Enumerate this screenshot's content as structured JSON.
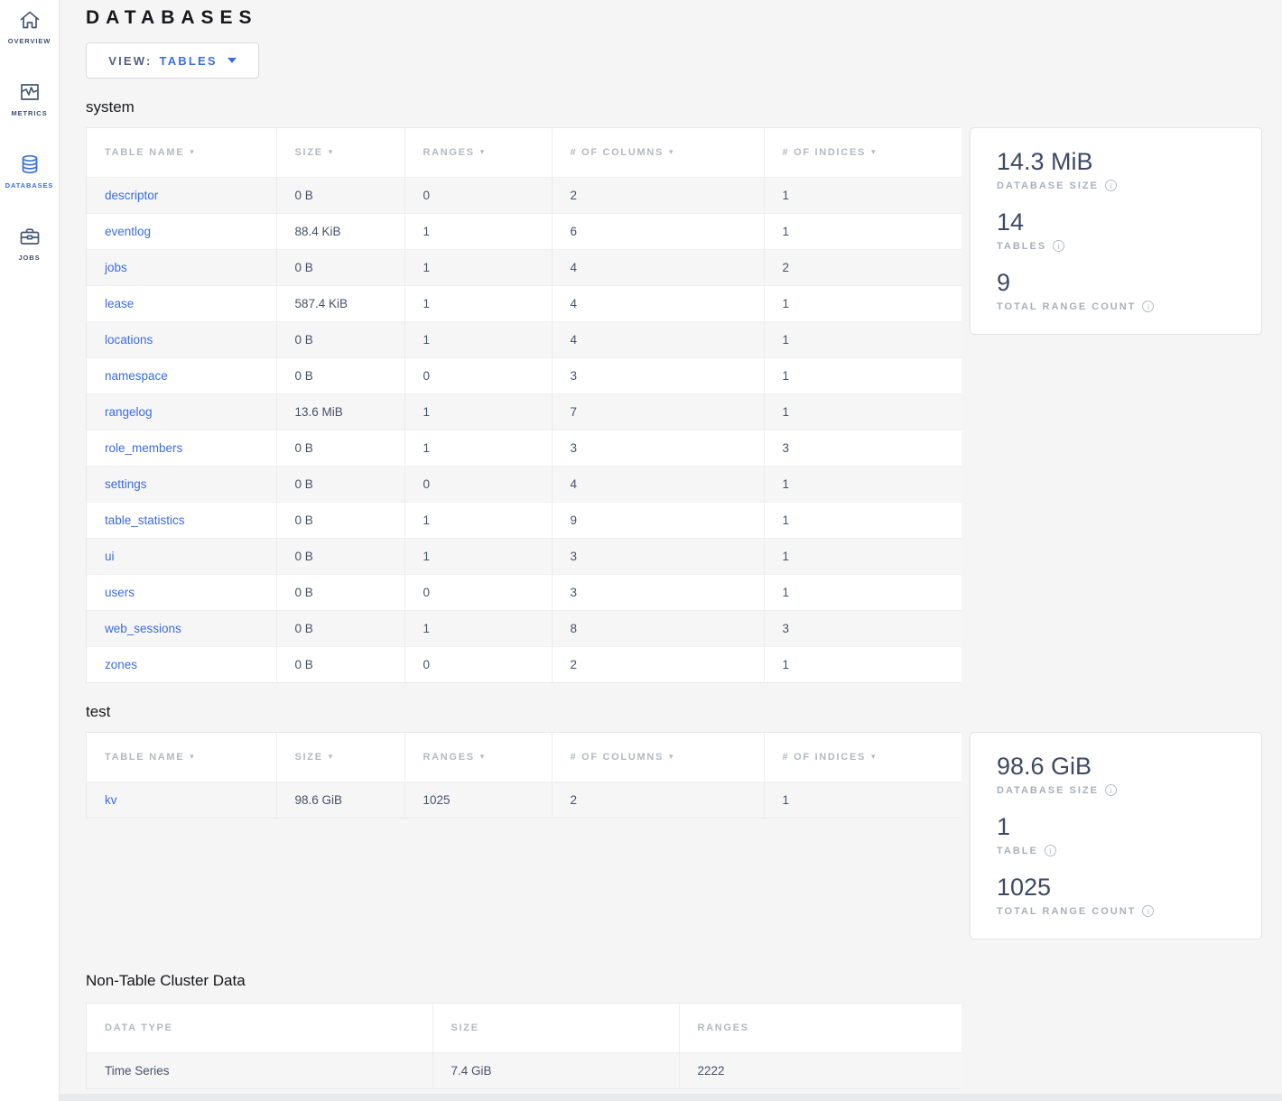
{
  "colors": {
    "accent_blue": "#3a6fe0",
    "link_blue": "#3b6ce0",
    "sidebar_slate": "#475872",
    "stat_value": "#3e4964",
    "background": "#f5f5f6"
  },
  "sidebar": {
    "items": [
      {
        "label": "OVERVIEW",
        "icon": "home-icon",
        "active": false
      },
      {
        "label": "METRICS",
        "icon": "metrics-icon",
        "active": false
      },
      {
        "label": "DATABASES",
        "icon": "database-icon",
        "active": true
      },
      {
        "label": "JOBS",
        "icon": "briefcase-icon",
        "active": false
      }
    ]
  },
  "page": {
    "title": "DATABASES",
    "view": {
      "label": "VIEW:",
      "value": "TABLES",
      "icon": "chevron-down-icon"
    }
  },
  "databases": [
    {
      "name": "system",
      "columns": [
        "TABLE NAME",
        "SIZE",
        "RANGES",
        "# OF COLUMNS",
        "# OF INDICES"
      ],
      "sortable": true,
      "rows": [
        [
          "descriptor",
          "0 B",
          "0",
          "2",
          "1"
        ],
        [
          "eventlog",
          "88.4 KiB",
          "1",
          "6",
          "1"
        ],
        [
          "jobs",
          "0 B",
          "1",
          "4",
          "2"
        ],
        [
          "lease",
          "587.4 KiB",
          "1",
          "4",
          "1"
        ],
        [
          "locations",
          "0 B",
          "1",
          "4",
          "1"
        ],
        [
          "namespace",
          "0 B",
          "0",
          "3",
          "1"
        ],
        [
          "rangelog",
          "13.6 MiB",
          "1",
          "7",
          "1"
        ],
        [
          "role_members",
          "0 B",
          "1",
          "3",
          "3"
        ],
        [
          "settings",
          "0 B",
          "0",
          "4",
          "1"
        ],
        [
          "table_statistics",
          "0 B",
          "1",
          "9",
          "1"
        ],
        [
          "ui",
          "0 B",
          "1",
          "3",
          "1"
        ],
        [
          "users",
          "0 B",
          "0",
          "3",
          "1"
        ],
        [
          "web_sessions",
          "0 B",
          "1",
          "8",
          "3"
        ],
        [
          "zones",
          "0 B",
          "0",
          "2",
          "1"
        ]
      ],
      "summary": [
        {
          "value": "14.3 MiB",
          "label": "DATABASE SIZE"
        },
        {
          "value": "14",
          "label": "TABLES"
        },
        {
          "value": "9",
          "label": "TOTAL RANGE COUNT"
        }
      ]
    },
    {
      "name": "test",
      "columns": [
        "TABLE NAME",
        "SIZE",
        "RANGES",
        "# OF COLUMNS",
        "# OF INDICES"
      ],
      "sortable": true,
      "rows": [
        [
          "kv",
          "98.6 GiB",
          "1025",
          "2",
          "1"
        ]
      ],
      "summary": [
        {
          "value": "98.6 GiB",
          "label": "DATABASE SIZE"
        },
        {
          "value": "1",
          "label": "TABLE"
        },
        {
          "value": "1025",
          "label": "TOTAL RANGE COUNT"
        }
      ]
    }
  ],
  "non_table": {
    "title": "Non-Table Cluster Data",
    "columns": [
      "DATA TYPE",
      "SIZE",
      "RANGES"
    ],
    "sortable": false,
    "rows": [
      [
        "Time Series",
        "7.4 GiB",
        "2222"
      ]
    ]
  }
}
